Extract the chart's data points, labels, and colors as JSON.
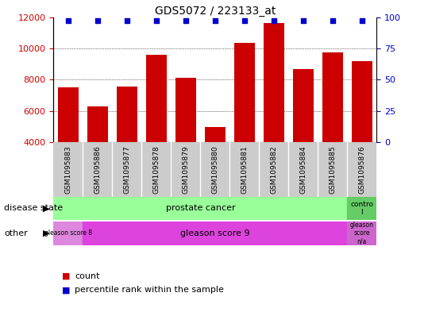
{
  "title": "GDS5072 / 223133_at",
  "samples": [
    "GSM1095883",
    "GSM1095886",
    "GSM1095877",
    "GSM1095878",
    "GSM1095879",
    "GSM1095880",
    "GSM1095881",
    "GSM1095882",
    "GSM1095884",
    "GSM1095885",
    "GSM1095876"
  ],
  "counts": [
    7500,
    6300,
    7550,
    9600,
    8100,
    4950,
    10350,
    11600,
    8650,
    9750,
    9200
  ],
  "percentiles": [
    97,
    97,
    97,
    97,
    97,
    97,
    97,
    97,
    97,
    97,
    97
  ],
  "ylim_left": [
    4000,
    12000
  ],
  "ylim_right": [
    0,
    100
  ],
  "left_ticks": [
    4000,
    6000,
    8000,
    10000,
    12000
  ],
  "right_ticks": [
    0,
    25,
    50,
    75,
    100
  ],
  "bar_color": "#cc0000",
  "dot_color": "#0000cc",
  "grid_color": "#333333",
  "bg_color": "#ffffff",
  "tick_label_color_left": "#cc0000",
  "tick_label_color_right": "#0000cc",
  "tick_area_bg": "#cccccc",
  "prostate_color": "#99ff99",
  "control_color": "#66cc66",
  "gleason8_color": "#dd88dd",
  "gleason9_color": "#dd44dd",
  "gleasonNA_color": "#cc66cc",
  "n_samples": 11,
  "prostate_count": 10,
  "gleason8_count": 1,
  "gleason9_count": 9
}
